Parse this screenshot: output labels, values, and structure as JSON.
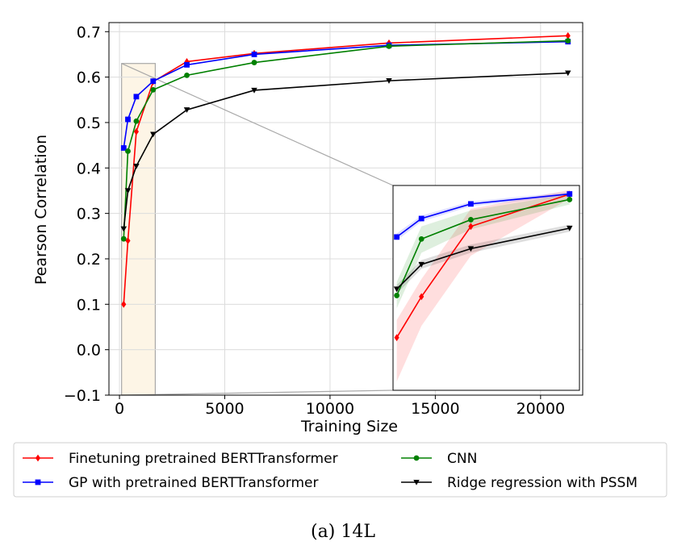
{
  "chart_data": {
    "type": "line",
    "caption": "(a) 14L",
    "xlabel": "Training Size",
    "ylabel": "Pearson Correlation",
    "xlim": [
      -500,
      22000
    ],
    "ylim": [
      -0.1,
      0.72
    ],
    "xticks": [
      0,
      5000,
      10000,
      15000,
      20000
    ],
    "xtick_labels": [
      "0",
      "5000",
      "10000",
      "15000",
      "20000"
    ],
    "yticks": [
      -0.1,
      0.0,
      0.1,
      0.2,
      0.3,
      0.4,
      0.5,
      0.6,
      0.7
    ],
    "ytick_labels": [
      "−0.1",
      "0.0",
      "0.1",
      "0.2",
      "0.3",
      "0.4",
      "0.5",
      "0.6",
      "0.7"
    ],
    "grid": true,
    "legend_position": "bottom, outside",
    "series": [
      {
        "name": "Finetuning pretrained BERTTransformer",
        "color": "#ff0000",
        "marker": "diamond",
        "x": [
          200,
          400,
          800,
          1600,
          3200,
          6400,
          12800,
          21300
        ],
        "y": [
          0.1,
          0.24,
          0.48,
          0.59,
          0.634,
          0.652,
          0.675,
          0.691
        ]
      },
      {
        "name": "GP with pretrained BERTTransformer",
        "color": "#0000ff",
        "marker": "square",
        "x": [
          200,
          400,
          800,
          1600,
          3200,
          6400,
          12800,
          21300
        ],
        "y": [
          0.444,
          0.507,
          0.557,
          0.591,
          0.627,
          0.65,
          0.67,
          0.678
        ]
      },
      {
        "name": "CNN",
        "color": "#008000",
        "marker": "circle",
        "x": [
          200,
          400,
          800,
          1600,
          3200,
          6400,
          12800,
          21300
        ],
        "y": [
          0.244,
          0.437,
          0.503,
          0.572,
          0.604,
          0.632,
          0.668,
          0.68
        ]
      },
      {
        "name": "Ridge regression with PSSM",
        "color": "#000000",
        "marker": "triangle-down",
        "x": [
          200,
          400,
          800,
          1600,
          3200,
          6400,
          12800,
          21300
        ],
        "y": [
          0.266,
          0.35,
          0.404,
          0.474,
          0.528,
          0.571,
          0.592,
          0.609
        ]
      }
    ],
    "zoom_region": {
      "x": [
        100,
        1700
      ],
      "y": [
        -0.1,
        0.63
      ]
    },
    "inset": {
      "description": "zoomed view of small training sizes with shaded confidence bands",
      "x": [
        200,
        400,
        800,
        1600
      ],
      "series": [
        {
          "name": "Finetuning pretrained BERTTransformer",
          "color": "#ff0000",
          "y": [
            0.1,
            0.24,
            0.48,
            0.59
          ],
          "low": [
            -0.05,
            0.14,
            0.38,
            0.575
          ],
          "high": [
            0.16,
            0.3,
            0.54,
            0.605
          ]
        },
        {
          "name": "GP with pretrained BERTTransformer",
          "color": "#0000ff",
          "y": [
            0.444,
            0.507,
            0.557,
            0.591
          ],
          "low": [
            0.432,
            0.497,
            0.549,
            0.584
          ],
          "high": [
            0.456,
            0.517,
            0.565,
            0.598
          ]
        },
        {
          "name": "CNN",
          "color": "#008000",
          "y": [
            0.244,
            0.437,
            0.503,
            0.572
          ],
          "low": [
            0.2,
            0.39,
            0.47,
            0.555
          ],
          "high": [
            0.29,
            0.48,
            0.535,
            0.59
          ]
        },
        {
          "name": "Ridge regression with PSSM",
          "color": "#000000",
          "y": [
            0.266,
            0.35,
            0.404,
            0.474
          ],
          "low": [
            0.25,
            0.335,
            0.39,
            0.462
          ],
          "high": [
            0.28,
            0.365,
            0.418,
            0.486
          ]
        }
      ]
    }
  }
}
